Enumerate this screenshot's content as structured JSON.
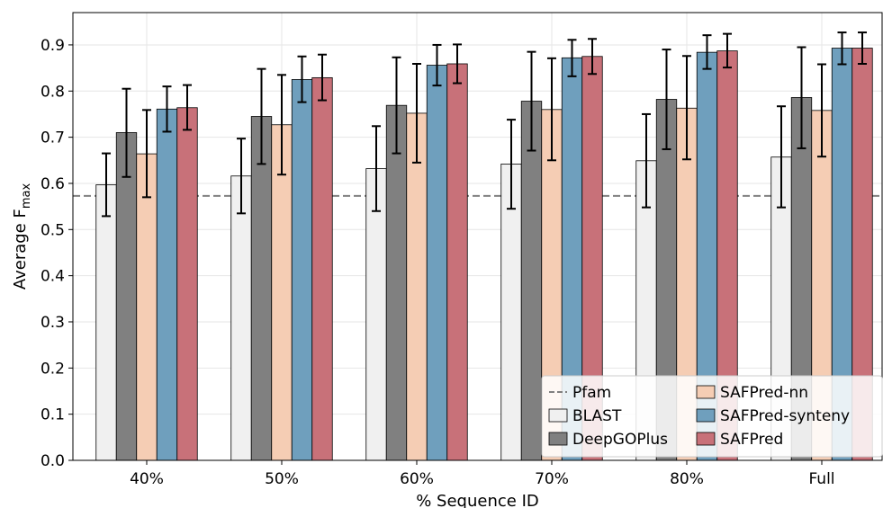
{
  "chart_data": {
    "type": "bar",
    "categories": [
      "40%",
      "50%",
      "60%",
      "70%",
      "80%",
      "Full"
    ],
    "xlabel": "% Sequence ID",
    "ylabel_main": "Average  F",
    "ylabel_sub": "max",
    "ylim": [
      0,
      0.97
    ],
    "yticks": [
      0.0,
      0.1,
      0.2,
      0.3,
      0.4,
      0.5,
      0.6,
      0.7,
      0.8,
      0.9
    ],
    "ytick_labels": [
      "0.0",
      "0.1",
      "0.2",
      "0.3",
      "0.4",
      "0.5",
      "0.6",
      "0.7",
      "0.8",
      "0.9"
    ],
    "grid": true,
    "legend_position": "bottom-right",
    "reference_line": {
      "name": "Pfam",
      "value": 0.573,
      "style": "dashed",
      "color": "#808080"
    },
    "series": [
      {
        "name": "BLAST",
        "color": "#f0f0f0",
        "values": [
          0.597,
          0.616,
          0.632,
          0.642,
          0.649,
          0.657
        ],
        "err_low": [
          0.529,
          0.535,
          0.54,
          0.545,
          0.548,
          0.548
        ],
        "err_high": [
          0.665,
          0.697,
          0.724,
          0.738,
          0.75,
          0.767
        ]
      },
      {
        "name": "DeepGOPlus",
        "color": "#808080",
        "values": [
          0.71,
          0.745,
          0.769,
          0.778,
          0.782,
          0.786
        ],
        "err_low": [
          0.614,
          0.642,
          0.665,
          0.671,
          0.674,
          0.676
        ],
        "err_high": [
          0.805,
          0.848,
          0.873,
          0.885,
          0.89,
          0.895
        ]
      },
      {
        "name": "SAFPred-nn",
        "color": "#f5cdb4",
        "values": [
          0.664,
          0.727,
          0.752,
          0.76,
          0.763,
          0.758
        ],
        "err_low": [
          0.57,
          0.619,
          0.645,
          0.65,
          0.652,
          0.658
        ],
        "err_high": [
          0.759,
          0.835,
          0.859,
          0.871,
          0.876,
          0.858
        ]
      },
      {
        "name": "SAFPred-synteny",
        "color": "#6f9fbd",
        "values": [
          0.761,
          0.825,
          0.856,
          0.872,
          0.884,
          0.893
        ],
        "err_low": [
          0.712,
          0.776,
          0.812,
          0.832,
          0.848,
          0.858
        ],
        "err_high": [
          0.81,
          0.875,
          0.9,
          0.911,
          0.921,
          0.927
        ]
      },
      {
        "name": "SAFPred",
        "color": "#c87179",
        "values": [
          0.764,
          0.829,
          0.859,
          0.875,
          0.887,
          0.893
        ],
        "err_low": [
          0.716,
          0.78,
          0.817,
          0.837,
          0.851,
          0.859
        ],
        "err_high": [
          0.813,
          0.879,
          0.901,
          0.913,
          0.924,
          0.927
        ]
      }
    ],
    "legend_order": [
      "Pfam",
      "SAFPred-nn",
      "BLAST",
      "SAFPred-synteny",
      "DeepGOPlus",
      "SAFPred"
    ]
  }
}
